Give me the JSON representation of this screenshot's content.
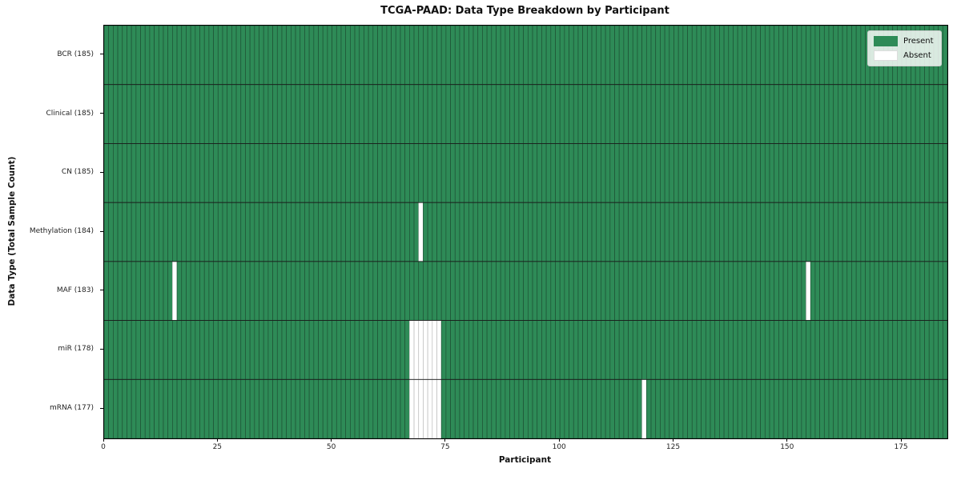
{
  "chart_data": {
    "type": "heatmap",
    "title": "TCGA-PAAD: Data Type Breakdown by Participant",
    "xlabel": "Participant",
    "ylabel": "Data Type (Total Sample Count)",
    "n_participants": 185,
    "xlim": [
      0,
      185
    ],
    "x_ticks": [
      0,
      25,
      50,
      75,
      100,
      125,
      150,
      175
    ],
    "grid": "per-cell black borders",
    "legend_position": "upper right",
    "colors": {
      "present": "#2e8b57",
      "absent": "#ffffff",
      "present_cell_border": "#1e5235",
      "absent_cell_border": "#bbbbbb",
      "row_divider": "#1a1a1a"
    },
    "legend": [
      {
        "label": "Present",
        "color": "#2e8b57"
      },
      {
        "label": "Absent",
        "color": "#ffffff"
      }
    ],
    "rows": [
      {
        "label": "BCR (185)",
        "data_type": "BCR",
        "total_samples": 185,
        "absent_participants": []
      },
      {
        "label": "Clinical (185)",
        "data_type": "Clinical",
        "total_samples": 185,
        "absent_participants": []
      },
      {
        "label": "CN (185)",
        "data_type": "CN",
        "total_samples": 185,
        "absent_participants": []
      },
      {
        "label": "Methylation (184)",
        "data_type": "Methylation",
        "total_samples": 184,
        "absent_participants": [
          69
        ]
      },
      {
        "label": "MAF (183)",
        "data_type": "MAF",
        "total_samples": 183,
        "absent_participants": [
          15,
          154
        ]
      },
      {
        "label": "miR (178)",
        "data_type": "miR",
        "total_samples": 178,
        "absent_participants": [
          67,
          68,
          69,
          70,
          71,
          72,
          73
        ]
      },
      {
        "label": "mRNA (177)",
        "data_type": "mRNA",
        "total_samples": 177,
        "absent_participants": [
          67,
          68,
          69,
          70,
          71,
          72,
          73,
          118
        ]
      }
    ]
  }
}
